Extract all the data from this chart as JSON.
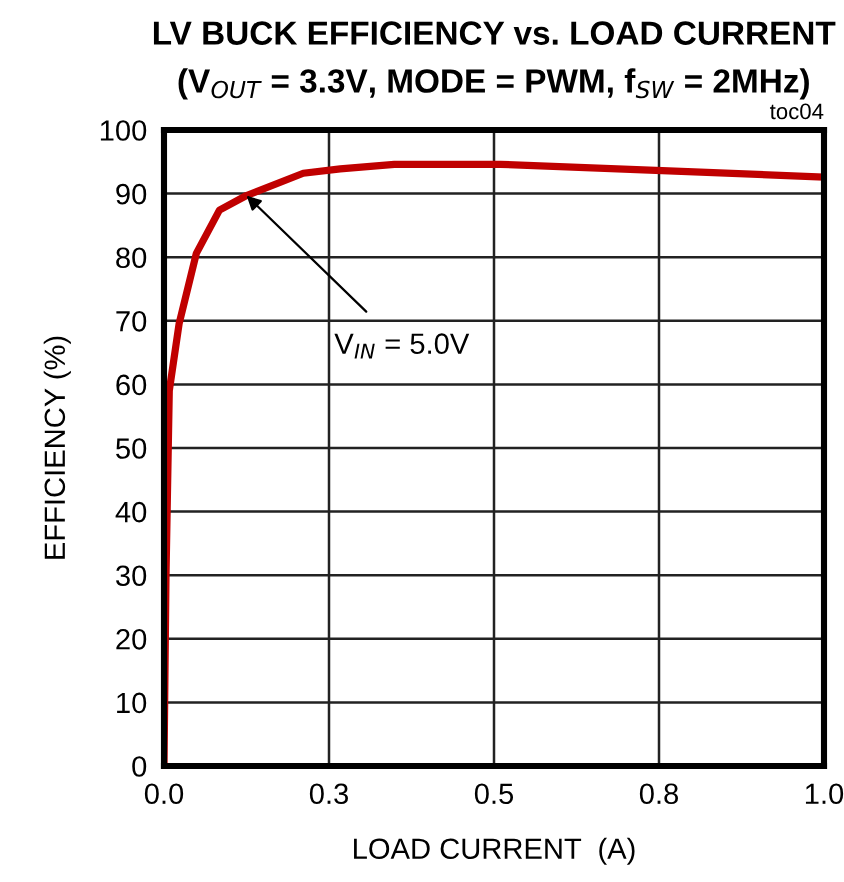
{
  "chart_data": {
    "type": "line",
    "title": "LV BUCK EFFICIENCY vs. LOAD CURRENT",
    "subtitle": "(V$_{OUT}$ = 3.3V, MODE = PWM, f$_{SW}$ = 2MHz)",
    "xlabel": "LOAD CURRENT  (A)",
    "ylabel": "EFFICIENCY (%)",
    "annotations": [
      {
        "text": "V$_{IN}$ = 5.0V",
        "x": 0.125,
        "y": 89.7
      },
      "toc04"
    ],
    "x": [
      0,
      0.003,
      0.008,
      0.023,
      0.049,
      0.084,
      0.125,
      0.211,
      0.267,
      0.349,
      0.51,
      0.755,
      1.0
    ],
    "series": [
      {
        "color": "#c00000",
        "values": [
          0,
          29.8,
          59,
          69.6,
          80.6,
          87.4,
          89.7,
          93.2,
          93.9,
          94.6,
          94.6,
          93.6,
          92.6
        ]
      }
    ],
    "xlim": [
      0,
      1.0
    ],
    "ylim": [
      0,
      100
    ],
    "xticks": [
      {
        "value": 0,
        "label": "0.0"
      },
      {
        "value": 0.25,
        "label": "0.3"
      },
      0.5,
      {
        "value": 0.75,
        "label": "0.8"
      },
      {
        "value": 1,
        "label": "1.0"
      }
    ],
    "yticks": [
      0,
      10,
      20,
      30,
      40,
      50,
      60,
      70,
      80,
      90,
      100
    ],
    "grid": true,
    "legend": false,
    "marker": "none",
    "line_style": "solid"
  }
}
